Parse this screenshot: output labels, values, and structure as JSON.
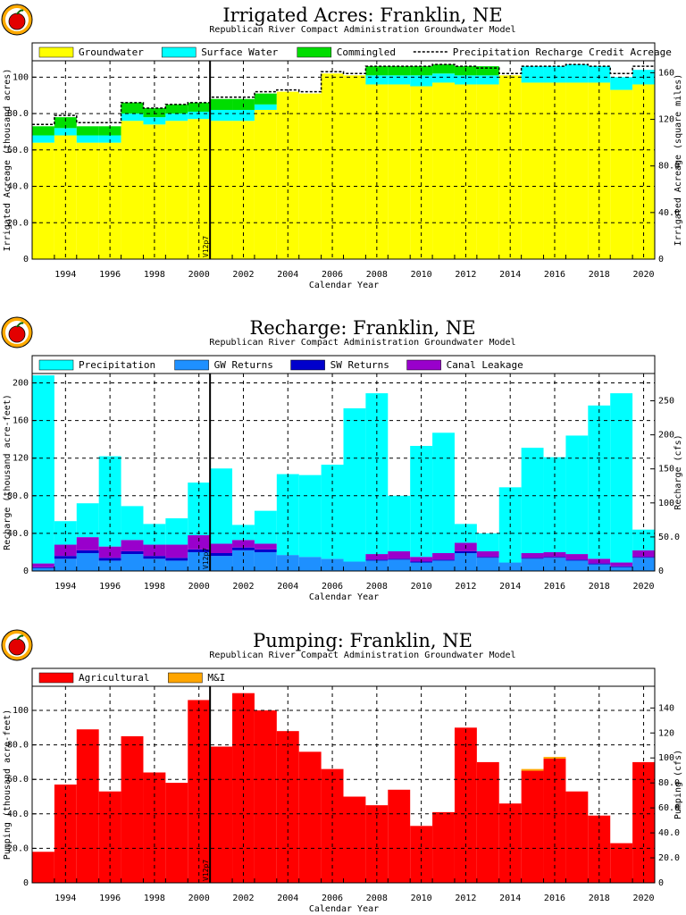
{
  "colors": {
    "groundwater": "#ffff00",
    "surface_water": "#00ffff",
    "commingled": "#00dd00",
    "gw_returns": "#1e90ff",
    "sw_returns": "#0000cc",
    "canal_leakage": "#9900cc",
    "agricultural": "#ff0000",
    "mi": "#ffa500",
    "logo_apple": "#e30000",
    "logo_ring": "#ffaa00"
  },
  "marker_label": "V12p7",
  "marker_year": 2000.5,
  "chart_data": [
    {
      "type": "bar",
      "stacked": true,
      "title": "Irrigated Acres: Franklin, NE",
      "subtitle": "Republican River Compact Administration Groundwater Model",
      "xlabel": "Calendar Year",
      "ylabel": "Irrigated Acreage (thousand acres)",
      "y2label": "Irrigated Acreage (square miles)",
      "ylim": [
        0,
        109
      ],
      "y2lim": [
        0,
        170.3
      ],
      "xlim": [
        1992.5,
        2020.5
      ],
      "yticks": [
        "0",
        "20.0",
        "40.0",
        "60.0",
        "80.0",
        "100"
      ],
      "yticks_values": [
        0,
        20,
        40,
        60,
        80,
        100
      ],
      "y2ticks": [
        "0",
        "40.0",
        "80.0",
        "120",
        "160"
      ],
      "y2ticks_values": [
        0,
        40,
        80,
        120,
        160
      ],
      "xticks": [
        "1994",
        "1996",
        "1998",
        "2000",
        "2002",
        "2004",
        "2006",
        "2008",
        "2010",
        "2012",
        "2014",
        "2016",
        "2018",
        "2020"
      ],
      "xticks_values": [
        1994,
        1996,
        1998,
        2000,
        2002,
        2004,
        2006,
        2008,
        2010,
        2012,
        2014,
        2016,
        2018,
        2020
      ],
      "grid": true,
      "legend": [
        {
          "label": "Groundwater",
          "color_key": "groundwater",
          "kind": "box"
        },
        {
          "label": "Surface Water",
          "color_key": "surface_water",
          "kind": "box"
        },
        {
          "label": "Commingled",
          "color_key": "commingled",
          "kind": "box"
        },
        {
          "label": "Precipitation Recharge Credit Acreage",
          "color_key": "",
          "kind": "dash"
        }
      ],
      "categories": [
        1993,
        1994,
        1995,
        1996,
        1997,
        1998,
        1999,
        2000,
        2001,
        2002,
        2003,
        2004,
        2005,
        2006,
        2007,
        2008,
        2009,
        2010,
        2011,
        2012,
        2013,
        2014,
        2015,
        2016,
        2017,
        2018,
        2019,
        2020
      ],
      "series": [
        {
          "name": "Groundwater",
          "color_key": "groundwater",
          "values": [
            64,
            68,
            64,
            64,
            76,
            74,
            76,
            77,
            76,
            76,
            82,
            92,
            91,
            102,
            101,
            96,
            96,
            95,
            97,
            96,
            96,
            101,
            97,
            97,
            97,
            97,
            93,
            96
          ]
        },
        {
          "name": "Surface Water",
          "color_key": "surface_water",
          "values": [
            4,
            4,
            4,
            4,
            4,
            4,
            4,
            4,
            6,
            6,
            3,
            0,
            0,
            0,
            0,
            5,
            5,
            6,
            5,
            5,
            5,
            0,
            9,
            9,
            10,
            9,
            7,
            8
          ]
        },
        {
          "name": "Commingled",
          "color_key": "commingled",
          "values": [
            5,
            6,
            5,
            5,
            6,
            5,
            5,
            5,
            6,
            6,
            6,
            0,
            0,
            0,
            0,
            5,
            5,
            5,
            5,
            5,
            5,
            0,
            0,
            0,
            0,
            0,
            0,
            0
          ]
        }
      ],
      "line_series": {
        "name": "Precipitation Recharge Credit Acreage",
        "values": [
          74,
          79,
          75,
          75,
          86,
          83,
          85,
          86,
          89,
          89,
          92,
          93,
          92,
          103,
          102,
          106,
          106,
          106,
          107,
          106,
          105,
          102,
          106,
          106,
          107,
          106,
          102,
          106
        ]
      }
    },
    {
      "type": "bar",
      "stacked": true,
      "title": "Recharge: Franklin, NE",
      "subtitle": "Republican River Compact Administration Groundwater Model",
      "xlabel": "Calendar Year",
      "ylabel": "Recharge (thousand acre-feet)",
      "y2label": "Recharge (cfs)",
      "ylim": [
        0,
        210
      ],
      "y2lim": [
        0,
        290.1
      ],
      "xlim": [
        1992.5,
        2020.5
      ],
      "yticks": [
        "0",
        "40.0",
        "80.0",
        "120",
        "160",
        "200"
      ],
      "yticks_values": [
        0,
        40,
        80,
        120,
        160,
        200
      ],
      "y2ticks": [
        "0",
        "50.0",
        "100",
        "150",
        "200",
        "250"
      ],
      "y2ticks_values": [
        0,
        50,
        100,
        150,
        200,
        250
      ],
      "xticks": [
        "1994",
        "1996",
        "1998",
        "2000",
        "2002",
        "2004",
        "2006",
        "2008",
        "2010",
        "2012",
        "2014",
        "2016",
        "2018",
        "2020"
      ],
      "xticks_values": [
        1994,
        1996,
        1998,
        2000,
        2002,
        2004,
        2006,
        2008,
        2010,
        2012,
        2014,
        2016,
        2018,
        2020
      ],
      "grid": true,
      "legend": [
        {
          "label": "Precipitation",
          "color_key": "surface_water",
          "kind": "box"
        },
        {
          "label": "GW Returns",
          "color_key": "gw_returns",
          "kind": "box"
        },
        {
          "label": "SW Returns",
          "color_key": "sw_returns",
          "kind": "box"
        },
        {
          "label": "Canal Leakage",
          "color_key": "canal_leakage",
          "kind": "box"
        }
      ],
      "categories": [
        1993,
        1994,
        1995,
        1996,
        1997,
        1998,
        1999,
        2000,
        2001,
        2002,
        2003,
        2004,
        2005,
        2006,
        2007,
        2008,
        2009,
        2010,
        2011,
        2012,
        2013,
        2014,
        2015,
        2016,
        2017,
        2018,
        2019,
        2020
      ],
      "series": [
        {
          "name": "GW Returns",
          "color_key": "gw_returns",
          "values": [
            3,
            13,
            19,
            11,
            18,
            13,
            11,
            20,
            16,
            22,
            20,
            17,
            15,
            13,
            10,
            11,
            12,
            9,
            11,
            19,
            14,
            9,
            13,
            14,
            11,
            7,
            4,
            14
          ]
        },
        {
          "name": "SW Returns",
          "color_key": "sw_returns",
          "values": [
            1,
            3,
            3,
            3,
            3,
            3,
            3,
            3,
            3,
            3,
            3,
            0,
            0,
            0,
            0,
            1,
            1,
            1,
            1,
            2,
            1,
            0,
            1,
            1,
            1,
            1,
            1,
            1
          ]
        },
        {
          "name": "Canal Leakage",
          "color_key": "canal_leakage",
          "values": [
            4,
            12,
            14,
            12,
            12,
            12,
            14,
            15,
            10,
            8,
            6,
            0,
            0,
            0,
            0,
            6,
            8,
            5,
            7,
            9,
            6,
            0,
            5,
            5,
            6,
            5,
            4,
            7
          ]
        },
        {
          "name": "Precipitation",
          "color_key": "surface_water",
          "values": [
            200,
            25,
            36,
            96,
            36,
            22,
            28,
            56,
            80,
            16,
            35,
            86,
            87,
            100,
            163,
            171,
            59,
            118,
            128,
            20,
            19,
            80,
            112,
            101,
            126,
            163,
            180,
            22
          ]
        }
      ]
    },
    {
      "type": "bar",
      "stacked": true,
      "title": "Pumping: Franklin, NE",
      "subtitle": "Republican River Compact Administration Groundwater Model",
      "xlabel": "Calendar Year",
      "ylabel": "Pumping (thousand acre-feet)",
      "y2label": "Pumping (cfs)",
      "ylim": [
        0,
        114
      ],
      "y2lim": [
        0,
        157.4
      ],
      "xlim": [
        1992.5,
        2020.5
      ],
      "yticks": [
        "0",
        "20.0",
        "40.0",
        "60.0",
        "80.0",
        "100"
      ],
      "yticks_values": [
        0,
        20,
        40,
        60,
        80,
        100
      ],
      "y2ticks": [
        "0",
        "20.0",
        "40.0",
        "60.0",
        "80.0",
        "100",
        "120",
        "140"
      ],
      "y2ticks_values": [
        0,
        20,
        40,
        60,
        80,
        100,
        120,
        140
      ],
      "xticks": [
        "1994",
        "1996",
        "1998",
        "2000",
        "2002",
        "2004",
        "2006",
        "2008",
        "2010",
        "2012",
        "2014",
        "2016",
        "2018",
        "2020"
      ],
      "xticks_values": [
        1994,
        1996,
        1998,
        2000,
        2002,
        2004,
        2006,
        2008,
        2010,
        2012,
        2014,
        2016,
        2018,
        2020
      ],
      "grid": true,
      "legend": [
        {
          "label": "Agricultural",
          "color_key": "agricultural",
          "kind": "box"
        },
        {
          "label": "M&I",
          "color_key": "mi",
          "kind": "box"
        }
      ],
      "categories": [
        1993,
        1994,
        1995,
        1996,
        1997,
        1998,
        1999,
        2000,
        2001,
        2002,
        2003,
        2004,
        2005,
        2006,
        2007,
        2008,
        2009,
        2010,
        2011,
        2012,
        2013,
        2014,
        2015,
        2016,
        2017,
        2018,
        2019,
        2020
      ],
      "series": [
        {
          "name": "Agricultural",
          "color_key": "agricultural",
          "values": [
            18,
            57,
            89,
            53,
            85,
            64,
            58,
            106,
            79,
            110,
            100,
            88,
            76,
            66,
            50,
            45,
            54,
            33,
            41,
            90,
            70,
            46,
            65,
            72,
            53,
            39,
            23,
            70
          ]
        },
        {
          "name": "M&I",
          "color_key": "mi",
          "values": [
            0,
            0,
            0,
            0,
            0,
            0,
            0,
            0,
            0,
            0,
            0,
            0,
            0,
            0,
            0,
            0,
            0,
            0,
            0,
            0,
            0,
            0,
            1,
            1,
            0,
            0,
            0,
            0
          ]
        }
      ]
    }
  ]
}
